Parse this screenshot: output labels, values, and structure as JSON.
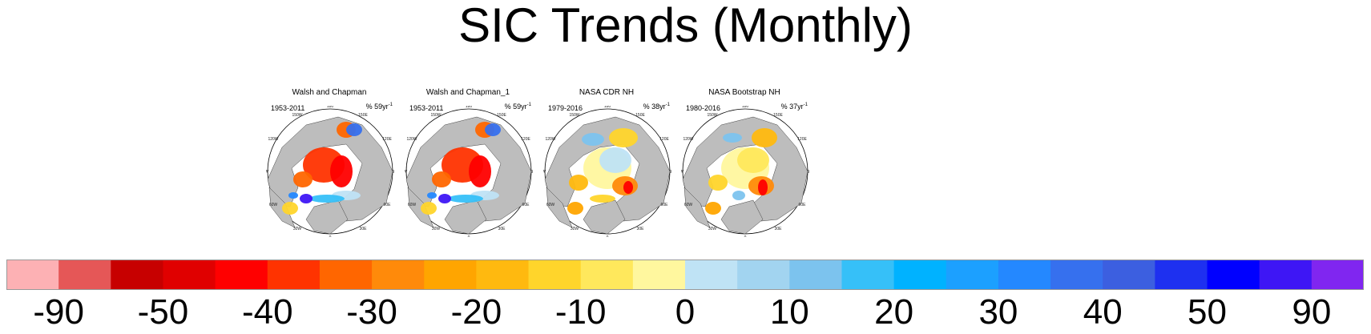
{
  "title": "SIC Trends (Monthly)",
  "chart_data": {
    "type": "heatmap",
    "title": "SIC Trends (Monthly)",
    "panels": [
      {
        "title": "Walsh and Chapman",
        "years": "1953-2011",
        "pct": "% 59yr",
        "exp": "-1"
      },
      {
        "title": "Walsh and Chapman_1",
        "years": "1953-2011",
        "pct": "% 59yr",
        "exp": "-1"
      },
      {
        "title": "NASA CDR NH",
        "years": "1979-2016",
        "pct": "% 38yr",
        "exp": "-1"
      },
      {
        "title": "NASA Bootstrap NH",
        "years": "1980-2016",
        "pct": "% 37yr",
        "exp": "-1"
      }
    ],
    "longitude_labels": [
      "180",
      "150E",
      "120E",
      "90E",
      "60E",
      "30E",
      "0",
      "30W",
      "60W",
      "90W",
      "120W",
      "150W"
    ],
    "colorbar": {
      "colors": [
        "#fdb1b4",
        "#e55757",
        "#c70000",
        "#e00000",
        "#ff0000",
        "#ff3300",
        "#ff6600",
        "#ff8a0a",
        "#ffa500",
        "#ffb90f",
        "#ffd52b",
        "#ffe85c",
        "#fff79e",
        "#bfe3f5",
        "#a2d4f0",
        "#7cc3ee",
        "#36c0f8",
        "#00b2ff",
        "#1ca0ff",
        "#2488ff",
        "#3670ee",
        "#3c5fe0",
        "#1e30f0",
        "#0000ff",
        "#3e16f5",
        "#8026f0"
      ],
      "tick_labels": [
        "-90",
        "-50",
        "-40",
        "-30",
        "-20",
        "-10",
        "0",
        "10",
        "20",
        "30",
        "40",
        "50",
        "90"
      ],
      "tick_boundaries": [
        1,
        3,
        5,
        7,
        9,
        11,
        13,
        15,
        17,
        19,
        21,
        23,
        25
      ]
    }
  }
}
